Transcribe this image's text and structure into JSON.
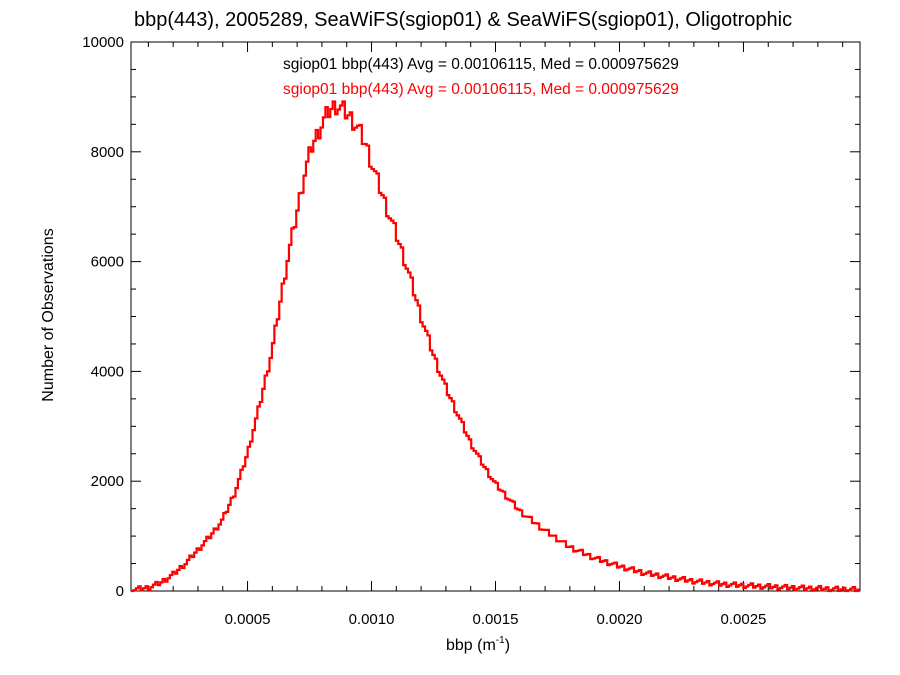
{
  "chart_data": {
    "type": "histogram",
    "title": "bbp(443), 2005289, SeaWiFS(sgiop01) & SeaWiFS(sgiop01), Oligotrophic",
    "xlabel": "bbp (m",
    "xlabel_superscript": "-1",
    "xlabel_suffix": ")",
    "ylabel": "Number of Observations",
    "xlim": [
      3e-05,
      0.00297
    ],
    "ylim": [
      0,
      10000
    ],
    "x_ticks": [
      0.0005,
      0.001,
      0.0015,
      0.002,
      0.0025
    ],
    "x_tick_labels": [
      "0.0005",
      "0.0010",
      "0.0015",
      "0.0020",
      "0.0025"
    ],
    "y_ticks": [
      0,
      2000,
      4000,
      6000,
      8000,
      10000
    ],
    "y_tick_labels": [
      "0",
      "2000",
      "4000",
      "6000",
      "8000",
      "10000"
    ],
    "grid": false,
    "annotations": [
      {
        "text": "sgiop01 bbp(443) Avg = 0.00106115, Med = 0.000975629",
        "color": "#000000"
      },
      {
        "text": "sgiop01 bbp(443) Avg = 0.00106115, Med = 0.000975629",
        "color": "#ff0000"
      }
    ],
    "series": [
      {
        "color": "#ff0000",
        "x": [
          3e-05,
          0.0001,
          0.00015,
          0.0002,
          0.00025,
          0.0003,
          0.00035,
          0.0004,
          0.00045,
          0.0005,
          0.00055,
          0.0006,
          0.00063,
          0.00066,
          0.0007,
          0.00073,
          0.00076,
          0.0008,
          0.00083,
          0.00086,
          0.00089,
          0.00092,
          0.00095,
          0.00098,
          0.001,
          0.00103,
          0.00106,
          0.0011,
          0.00115,
          0.0012,
          0.00125,
          0.0013,
          0.00135,
          0.0014,
          0.00145,
          0.0015,
          0.0016,
          0.0017,
          0.0018,
          0.0019,
          0.002,
          0.0021,
          0.0022,
          0.0023,
          0.0024,
          0.0025,
          0.0026,
          0.0027,
          0.0028,
          0.0029,
          0.00297
        ],
        "y": [
          20,
          60,
          150,
          300,
          500,
          750,
          1000,
          1300,
          1800,
          2500,
          3400,
          4400,
          5200,
          6000,
          6900,
          7600,
          8100,
          8500,
          8750,
          8850,
          8750,
          8600,
          8400,
          8100,
          7800,
          7400,
          7000,
          6500,
          5800,
          5000,
          4300,
          3700,
          3200,
          2700,
          2300,
          1950,
          1450,
          1100,
          800,
          600,
          450,
          330,
          250,
          180,
          130,
          100,
          80,
          60,
          45,
          30,
          25
        ]
      }
    ]
  }
}
